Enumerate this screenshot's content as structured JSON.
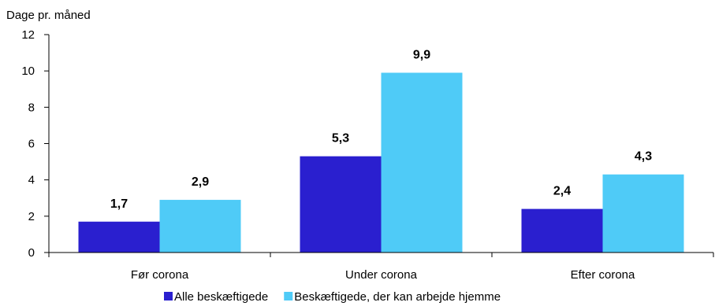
{
  "chart_data": {
    "type": "bar",
    "ylabel": "Dage pr. måned",
    "ylim": [
      0,
      12
    ],
    "yticks": [
      "0",
      "2",
      "4",
      "6",
      "8",
      "10",
      "12"
    ],
    "categories": [
      "Før corona",
      "Under corona",
      "Efter corona"
    ],
    "series": [
      {
        "name": "Alle beskæftigede",
        "values": [
          1.7,
          5.3,
          2.4
        ],
        "labels": [
          "1,7",
          "5,3",
          "2,4"
        ],
        "color": "#2a1fcf"
      },
      {
        "name": "Beskæftigede, der kan arbejde hjemme",
        "values": [
          2.9,
          9.9,
          4.3
        ],
        "labels": [
          "2,9",
          "9,9",
          "4,3"
        ],
        "color": "#4fcbf7"
      }
    ],
    "grid": false,
    "legend": "bottom"
  }
}
